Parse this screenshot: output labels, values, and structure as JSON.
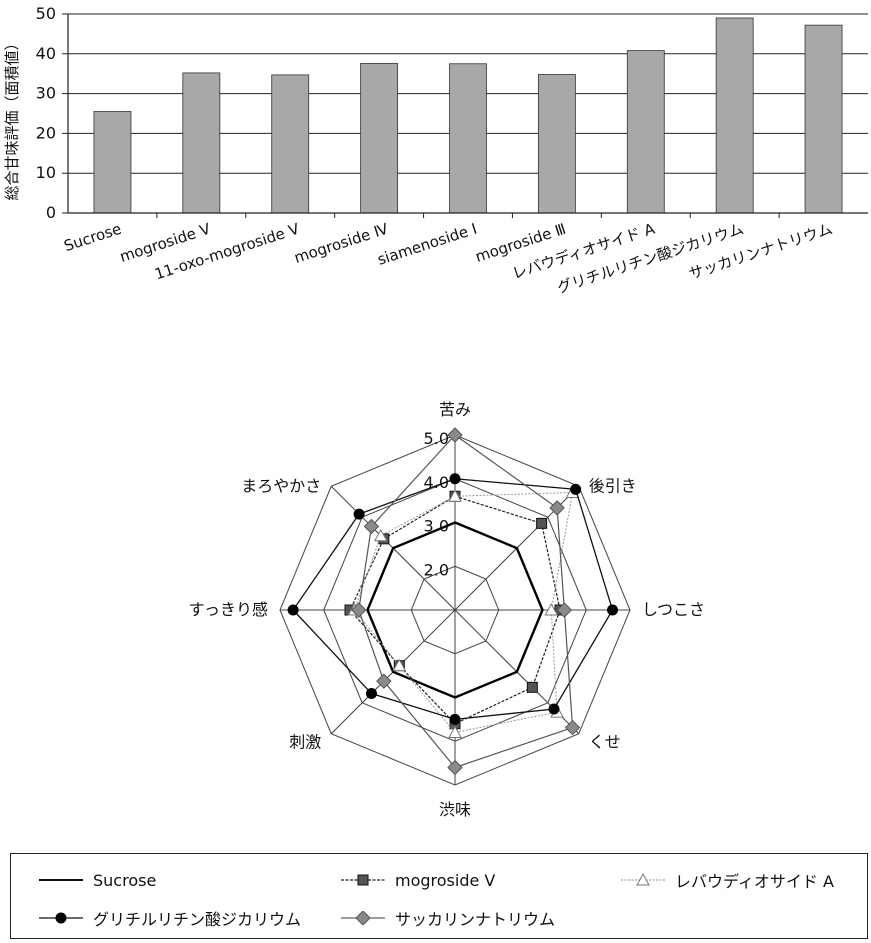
{
  "chart_data": [
    {
      "type": "bar",
      "ylabel": "総合甘味評価（面積値）",
      "ylim": [
        0,
        50
      ],
      "yticks": [
        0,
        10,
        20,
        30,
        40,
        50
      ],
      "categories": [
        "Sucrose",
        "mogroside V",
        "11-oxo-mogroside V",
        "mogroside Ⅳ",
        "siamenoside Ⅰ",
        "mogroside Ⅲ",
        "レバウディオサイド A",
        "グリチルリチン酸ジカリウム",
        "サッカリンナトリウム"
      ],
      "values": [
        25.5,
        35.2,
        34.7,
        37.6,
        37.5,
        34.8,
        40.8,
        49.0,
        47.2
      ],
      "grid": "horizontal",
      "bar_color": "#a8a8a8"
    },
    {
      "type": "radar",
      "axes": [
        "苦み",
        "後引き",
        "しつこさ",
        "くせ",
        "渋味",
        "刺激",
        "すっきり感",
        "まろやかさ"
      ],
      "rmin": 1.0,
      "rmax": 5.0,
      "ring_labels": [
        "2.0",
        "3.0",
        "4.0",
        "5.0"
      ],
      "series": [
        {
          "name": "Sucrose",
          "marker": "none",
          "values": [
            3.0,
            3.0,
            3.0,
            3.0,
            3.0,
            3.0,
            3.0,
            3.0
          ]
        },
        {
          "name": "mogroside V",
          "marker": "square",
          "values": [
            3.6,
            3.8,
            3.4,
            3.5,
            3.6,
            2.8,
            3.4,
            3.3
          ]
        },
        {
          "name": "レバウディオサイド A",
          "marker": "triangle",
          "values": [
            3.6,
            4.8,
            3.2,
            4.3,
            3.8,
            2.8,
            3.3,
            3.4
          ]
        },
        {
          "name": "グリチルリチン酸ジカリウム",
          "marker": "circle",
          "values": [
            4.0,
            4.9,
            4.6,
            4.2,
            3.5,
            3.7,
            4.7,
            4.1
          ]
        },
        {
          "name": "サッカリンナトリウム",
          "marker": "diamond",
          "values": [
            5.0,
            4.3,
            3.5,
            4.8,
            4.6,
            3.3,
            3.2,
            3.7
          ]
        }
      ]
    }
  ]
}
